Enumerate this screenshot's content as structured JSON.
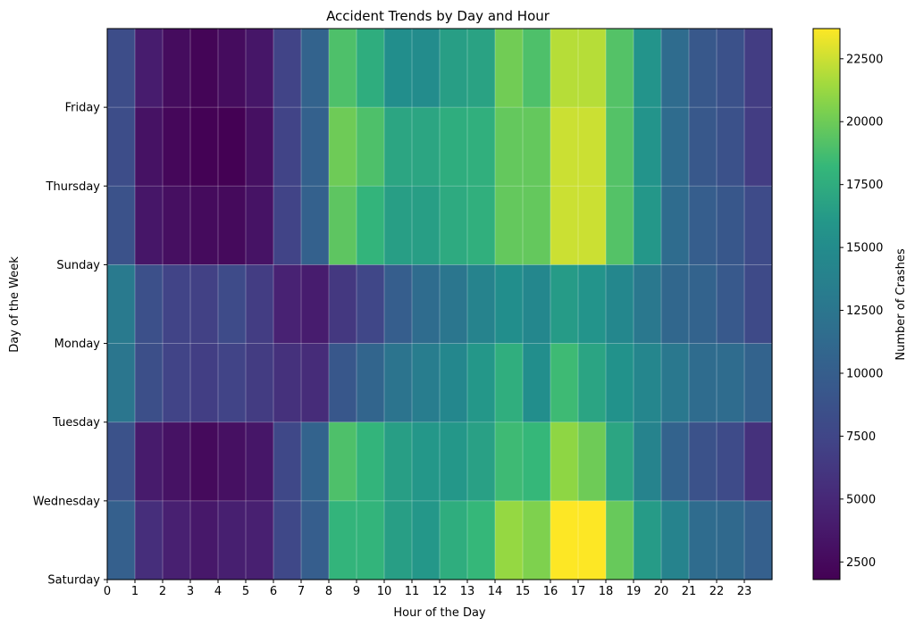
{
  "chart_data": {
    "type": "heatmap",
    "title": "Accident Trends by Day and Hour",
    "xlabel": "Hour of the Day",
    "ylabel": "Day of the Week",
    "colorbar_label": "Number of Crashes",
    "colormap": "viridis",
    "x_ticks": [
      "0",
      "1",
      "2",
      "3",
      "4",
      "5",
      "6",
      "7",
      "8",
      "9",
      "10",
      "11",
      "12",
      "13",
      "14",
      "15",
      "16",
      "17",
      "18",
      "19",
      "20",
      "21",
      "22",
      "23"
    ],
    "y_ticks": [
      "Friday",
      "Thursday",
      "Sunday",
      "Monday",
      "Tuesday",
      "Wednesday",
      "Saturday"
    ],
    "colorbar_ticks": [
      2500,
      5000,
      7500,
      10000,
      12500,
      15000,
      17500,
      20000,
      22500
    ],
    "colorbar_range": [
      1800,
      23700
    ],
    "grid": true,
    "rows_top_to_bottom": [
      [
        8200,
        4000,
        2700,
        2100,
        2700,
        3500,
        7300,
        10500,
        19000,
        17500,
        15200,
        15000,
        16500,
        16800,
        20100,
        19000,
        22000,
        22000,
        19200,
        15800,
        11500,
        9400,
        8600,
        6700
      ],
      [
        8200,
        3200,
        2300,
        1900,
        1800,
        3000,
        7300,
        10300,
        20000,
        19000,
        17000,
        17000,
        17500,
        17700,
        19700,
        19700,
        22500,
        22500,
        19200,
        15800,
        11500,
        9400,
        8600,
        6700
      ],
      [
        8700,
        3500,
        2900,
        2600,
        2500,
        3300,
        7300,
        10300,
        19500,
        18000,
        16500,
        16500,
        17300,
        17700,
        19700,
        19700,
        22500,
        22500,
        19200,
        16000,
        11500,
        10000,
        9300,
        8000
      ],
      [
        13000,
        8500,
        7300,
        7000,
        8000,
        6700,
        4500,
        4000,
        6300,
        7600,
        10000,
        11500,
        12500,
        14000,
        15200,
        14500,
        16300,
        15800,
        14500,
        12800,
        11000,
        10500,
        9500,
        7900
      ],
      [
        12500,
        8400,
        7300,
        6800,
        7300,
        6600,
        5700,
        5300,
        9300,
        10800,
        12300,
        13300,
        14500,
        16000,
        17600,
        15200,
        18500,
        16900,
        15700,
        14300,
        12800,
        11500,
        11500,
        10500
      ],
      [
        8700,
        3900,
        3200,
        2500,
        3000,
        3500,
        7700,
        10500,
        19000,
        18000,
        16500,
        16000,
        16000,
        16600,
        18500,
        18200,
        21000,
        20000,
        17000,
        14000,
        10500,
        8700,
        8000,
        5700
      ],
      [
        10200,
        5500,
        4300,
        3700,
        4200,
        4300,
        7700,
        10000,
        18000,
        18000,
        16500,
        16000,
        17500,
        18200,
        21200,
        20500,
        23700,
        23700,
        19800,
        16300,
        14000,
        11500,
        11200,
        10200
      ]
    ]
  }
}
